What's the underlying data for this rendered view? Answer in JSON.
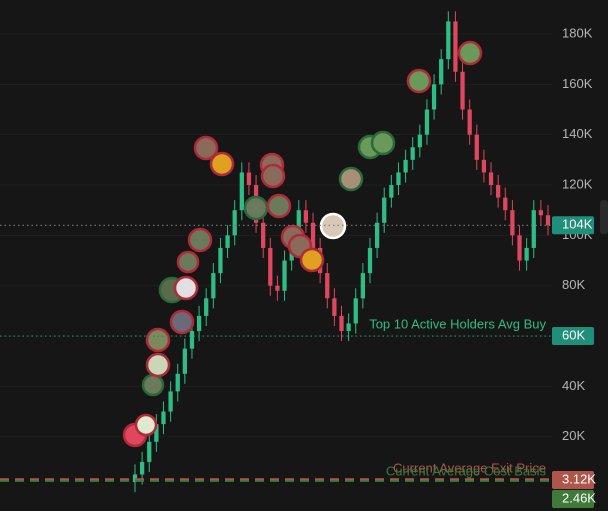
{
  "chart_data": {
    "type": "candlestick",
    "open": [
      2,
      5,
      10,
      18,
      25,
      30,
      38,
      45,
      55,
      62,
      68,
      75,
      85,
      95,
      100,
      110,
      125,
      120,
      105,
      95,
      80,
      78,
      90,
      100,
      110,
      105,
      95,
      85,
      75,
      68,
      62,
      65,
      75,
      85,
      95,
      105,
      115,
      120,
      125,
      130,
      135,
      140,
      150,
      160,
      170,
      185,
      165,
      150,
      140,
      130,
      125,
      120,
      115,
      110,
      100,
      90,
      95,
      110,
      108
    ],
    "high": [
      9,
      14,
      22,
      29,
      34,
      42,
      49,
      59,
      66,
      72,
      79,
      89,
      99,
      104,
      114,
      129,
      129,
      124,
      109,
      99,
      84,
      94,
      104,
      114,
      114,
      109,
      99,
      89,
      79,
      72,
      69,
      79,
      89,
      99,
      109,
      119,
      124,
      129,
      134,
      139,
      144,
      154,
      164,
      174,
      189,
      189,
      169,
      154,
      144,
      134,
      129,
      124,
      119,
      114,
      104,
      99,
      114,
      114,
      112
    ],
    "low": [
      -2,
      1,
      6,
      14,
      21,
      26,
      34,
      41,
      51,
      58,
      64,
      71,
      81,
      91,
      96,
      106,
      116,
      101,
      91,
      76,
      74,
      74,
      86,
      96,
      101,
      91,
      81,
      71,
      64,
      58,
      58,
      61,
      71,
      81,
      91,
      101,
      111,
      116,
      121,
      126,
      131,
      136,
      146,
      156,
      166,
      161,
      146,
      136,
      126,
      121,
      116,
      111,
      106,
      96,
      86,
      86,
      91,
      104,
      100
    ],
    "close": [
      5,
      10,
      18,
      25,
      30,
      38,
      45,
      55,
      62,
      68,
      75,
      85,
      95,
      100,
      110,
      125,
      120,
      105,
      95,
      80,
      78,
      90,
      100,
      110,
      105,
      95,
      85,
      75,
      68,
      62,
      65,
      75,
      85,
      95,
      105,
      115,
      120,
      125,
      130,
      135,
      140,
      150,
      160,
      170,
      185,
      165,
      150,
      140,
      130,
      125,
      120,
      115,
      110,
      100,
      90,
      95,
      110,
      108,
      104
    ],
    "up_color": "#2ebd85",
    "down_color": "#e0465e",
    "ylim": [
      -9.5,
      193.5
    ],
    "yticks": [
      {
        "value": 20,
        "label": "20K"
      },
      {
        "value": 40,
        "label": "40K"
      },
      {
        "value": 60,
        "label": "60K"
      },
      {
        "value": 80,
        "label": "80K"
      },
      {
        "value": 100,
        "label": "100K"
      },
      {
        "value": 120,
        "label": "120K"
      },
      {
        "value": 140,
        "label": "140K"
      },
      {
        "value": 160,
        "label": "160K"
      },
      {
        "value": 180,
        "label": "180K"
      }
    ],
    "price_lines": [
      {
        "value": 104,
        "label": "104K",
        "color": "#1f8f7a",
        "style": "dotted"
      },
      {
        "value": 60,
        "label": "60K",
        "color": "#1f8f7a",
        "style": "dotted",
        "text": "Top 10 Active Holders Avg Buy"
      },
      {
        "value": 3.12,
        "label": "3.12K",
        "color": "#b0554a",
        "style": "dashed",
        "text": "Current Average Exit Price"
      },
      {
        "value": 2.46,
        "label": "2.46K",
        "color": "#3f7a3a",
        "style": "dashed",
        "text": "Current Average Cost Basis"
      }
    ]
  }
}
